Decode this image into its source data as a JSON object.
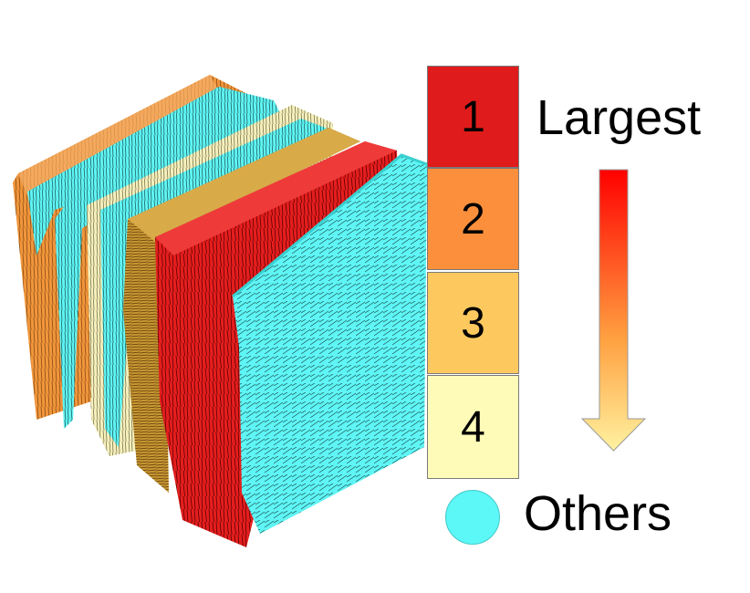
{
  "legend": {
    "ranks": [
      {
        "label": "1",
        "color": "#e01b1b"
      },
      {
        "label": "2",
        "color": "#fb8f3c"
      },
      {
        "label": "3",
        "color": "#fdc95e"
      },
      {
        "label": "4",
        "color": "#fefbb8"
      }
    ],
    "top_label": "Largest",
    "others_label": "Others",
    "others_color": "#5cf7f7",
    "arrow_gradient": [
      "#ff0000",
      "#ffa040",
      "#fff2a0"
    ]
  },
  "volume": {
    "layer_colors": {
      "rank_1": "#e51e1e",
      "rank_2": "#f0963c",
      "rank_3": "#c89632",
      "rank_4": "#f5f0bc",
      "others": "#5ff5f5"
    }
  }
}
